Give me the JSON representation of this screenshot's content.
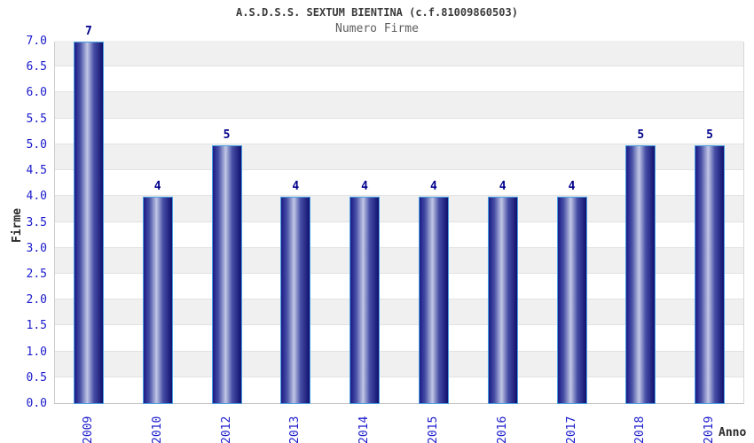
{
  "chart_data": {
    "type": "bar",
    "title": "A.S.D.S.S. SEXTUM BIENTINA (c.f.81009860503)",
    "subtitle": "Numero Firme",
    "xlabel": "Anno",
    "ylabel": "Firme",
    "categories": [
      "2009",
      "2010",
      "2012",
      "2013",
      "2014",
      "2015",
      "2016",
      "2017",
      "2018",
      "2019"
    ],
    "values": [
      7,
      4,
      5,
      4,
      4,
      4,
      4,
      4,
      5,
      5
    ],
    "value_labels": [
      "7",
      "4",
      "5",
      "4",
      "4",
      "4",
      "4",
      "4",
      "5",
      "5"
    ],
    "ylim": [
      0.0,
      7.0
    ],
    "ytick_step": 0.5,
    "yticks": [
      "0.0",
      "0.5",
      "1.0",
      "1.5",
      "2.0",
      "2.5",
      "3.0",
      "3.5",
      "4.0",
      "4.5",
      "5.0",
      "5.5",
      "6.0",
      "6.5",
      "7.0"
    ],
    "grid": "horizontal-bands-alternating",
    "legend": "none",
    "colors": {
      "bar_edge_dark": "#1b1b85",
      "bar_mid": "#474fa6",
      "bar_highlight": "#c1c7e5",
      "bar_edge_darkest": "#10106e",
      "bar_outline": "#4a9fe2",
      "tick_label": "#1a1acd",
      "value_label": "#00008b",
      "band_gray": "#f0f0f0",
      "band_white": "#ffffff",
      "gridline": "#e2e2e2",
      "title_color": "#3a3a3a",
      "subtitle_color": "#5e5e5e",
      "axis_label_color": "#2b2b2b"
    }
  }
}
